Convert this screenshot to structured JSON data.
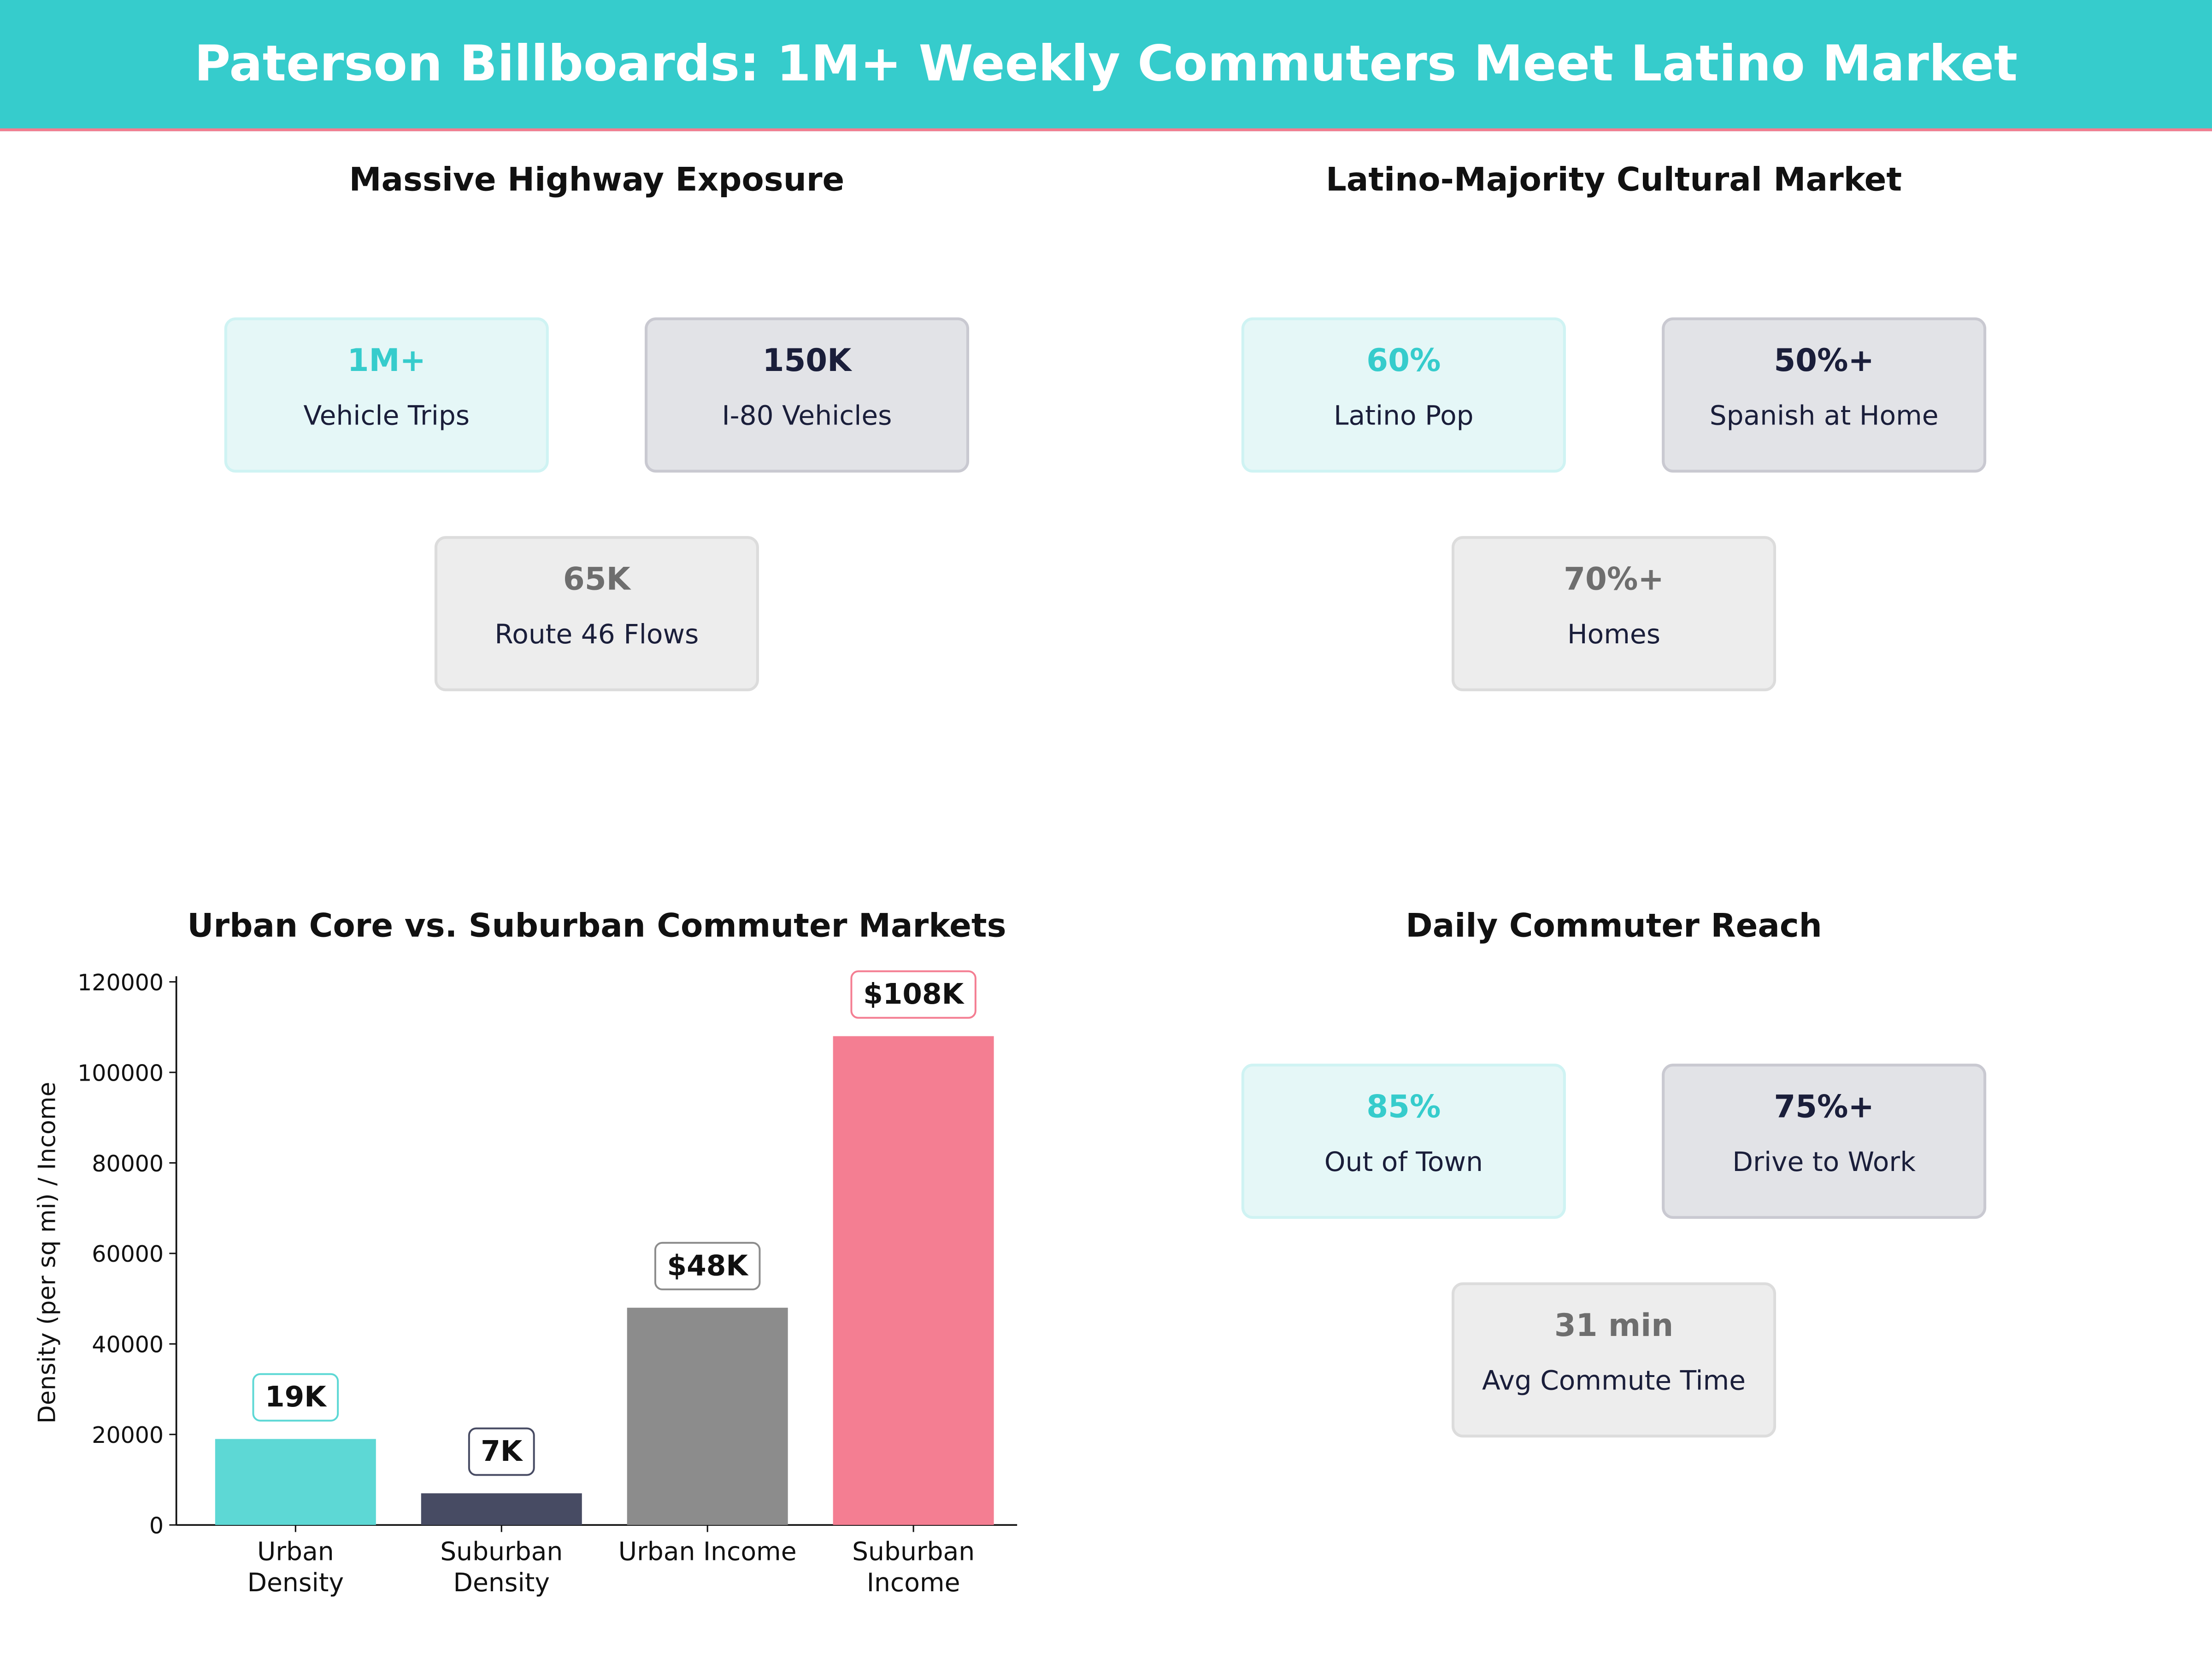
{
  "header": {
    "title": "Paterson Billboards: 1M+ Weekly Commuters Meet Latino Market"
  },
  "panels": {
    "highway": {
      "title": "Massive Highway Exposure",
      "cards": [
        {
          "value": "1M+",
          "label": "Vehicle Trips",
          "style": "teal"
        },
        {
          "value": "150K",
          "label": "I-80  Vehicles",
          "style": "navy"
        },
        {
          "value": "65K",
          "label": "Route 46  Flows",
          "style": "gray"
        }
      ]
    },
    "latino": {
      "title": "Latino-Majority Cultural Market",
      "cards": [
        {
          "value": "60%",
          "label": "Latino Pop",
          "style": "teal"
        },
        {
          "value": "50%+",
          "label": "Spanish at Home",
          "style": "navy"
        },
        {
          "value": "70%+",
          "label": "Homes",
          "style": "gray"
        }
      ]
    },
    "reach": {
      "title": "Daily Commuter Reach",
      "cards": [
        {
          "value": "85%",
          "label": "Out of Town",
          "style": "teal"
        },
        {
          "value": "75%+",
          "label": "Drive to Work",
          "style": "navy"
        },
        {
          "value": "31 min",
          "label": "Avg Commute Time",
          "style": "gray"
        }
      ]
    }
  },
  "colors": {
    "teal": "#36CCCC",
    "navy": "#1A1E3A",
    "gray": "#6E6E6E",
    "pink": "#F47C8F"
  },
  "chart_data": {
    "type": "bar",
    "title": "Urban Core vs. Suburban Commuter Markets",
    "categories": [
      "Urban\nDensity",
      "Suburban\nDensity",
      "Urban Income",
      "Suburban\nIncome"
    ],
    "values": [
      19000,
      7000,
      48000,
      108000
    ],
    "data_labels": [
      "19K",
      "7K",
      "$48K",
      "$108K"
    ],
    "colors": [
      "#5DD8D5",
      "#474B63",
      "#8C8C8C",
      "#F47E92"
    ],
    "label_border_colors": [
      "#5DD8D5",
      "#474B63",
      "#8C8C8C",
      "#F47E92"
    ],
    "xlabel": "",
    "ylabel": "Density (per sq mi) / Income",
    "ylim": [
      0,
      120000
    ],
    "yticks": [
      "0",
      "20000",
      "40000",
      "60000",
      "80000",
      "100000",
      "120000"
    ],
    "grid": false
  }
}
